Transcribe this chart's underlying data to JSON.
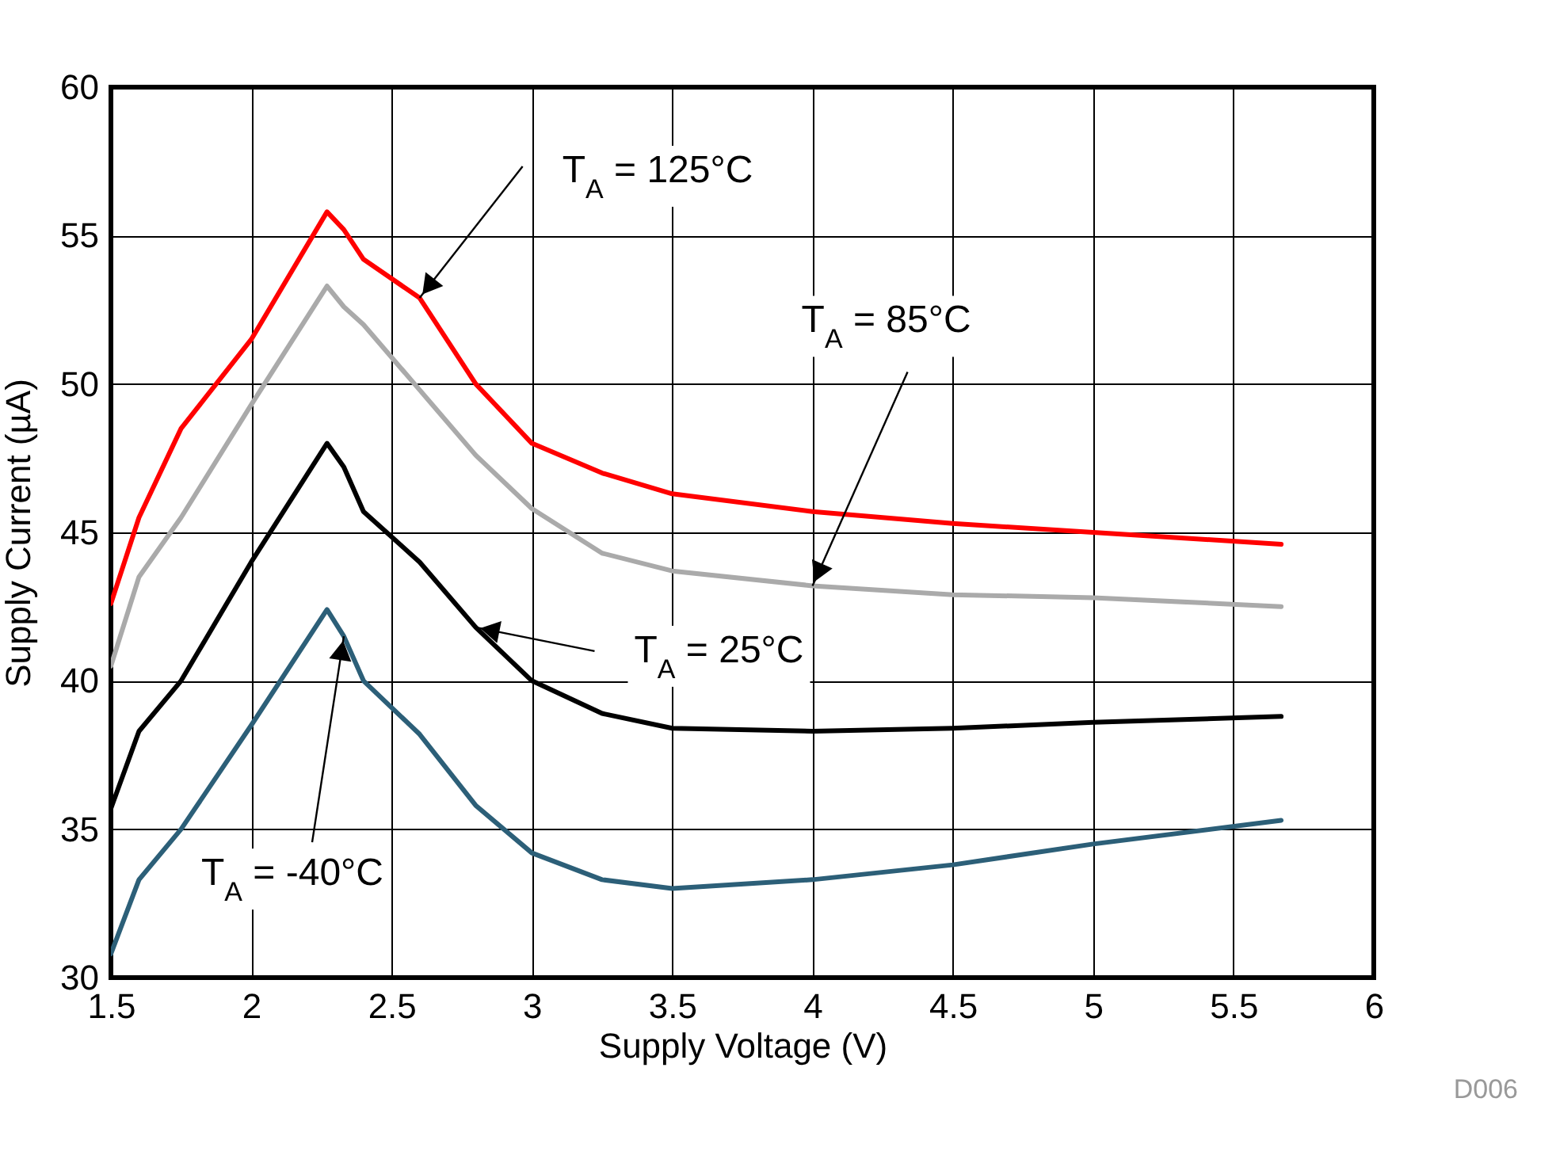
{
  "chart_data": {
    "type": "line",
    "xlabel": "Supply Voltage (V)",
    "ylabel": "Supply Current (µA)",
    "x": [
      1.5,
      1.6,
      1.75,
      2.0,
      2.27,
      2.33,
      2.4,
      2.6,
      2.8,
      3.0,
      3.25,
      3.5,
      4.0,
      4.5,
      5.0,
      5.67
    ],
    "series": [
      {
        "color": "#ff0000",
        "values": [
          42.6,
          45.5,
          48.5,
          51.5,
          55.8,
          55.2,
          54.2,
          52.9,
          50.0,
          48.0,
          47.0,
          46.3,
          45.7,
          45.3,
          45.0,
          44.6
        ]
      },
      {
        "color": "#aaaaaa",
        "values": [
          40.5,
          43.5,
          45.5,
          49.3,
          53.3,
          52.6,
          52.0,
          49.8,
          47.6,
          45.8,
          44.3,
          43.7,
          43.2,
          42.9,
          42.8,
          42.5
        ]
      },
      {
        "color": "#000000",
        "values": [
          35.7,
          38.3,
          40.0,
          44.0,
          48.0,
          47.2,
          45.7,
          44.0,
          41.8,
          40.0,
          38.9,
          38.4,
          38.3,
          38.4,
          38.6,
          38.8
        ]
      },
      {
        "color": "#2c5f78",
        "values": [
          30.8,
          33.3,
          35.0,
          38.5,
          42.4,
          41.5,
          40.0,
          38.2,
          35.8,
          34.2,
          33.3,
          33.0,
          33.3,
          33.8,
          34.5,
          35.3
        ]
      }
    ],
    "annotations": [
      {
        "text": "T$_{A}$ = 125°C",
        "x": 2.6,
        "y": 52.9
      },
      {
        "text": "T$_{A}$ = 85°C",
        "x": 4.0,
        "y": 43.2
      },
      {
        "text": "T$_{A}$ = 25°C",
        "x": 2.8,
        "y": 41.8
      },
      {
        "text": "T$_{A}$ = -40°C",
        "x": 2.33,
        "y": 41.5
      },
      "D006"
    ],
    "xlim": [
      1.5,
      6
    ],
    "ylim": [
      30,
      60
    ],
    "xticks": [
      1.5,
      2,
      2.5,
      3,
      3.5,
      4,
      4.5,
      5,
      5.5,
      6
    ],
    "yticks": [
      30,
      35,
      40,
      45,
      50,
      55,
      60
    ],
    "grid": true,
    "marker": "none",
    "line_style": "solid"
  }
}
